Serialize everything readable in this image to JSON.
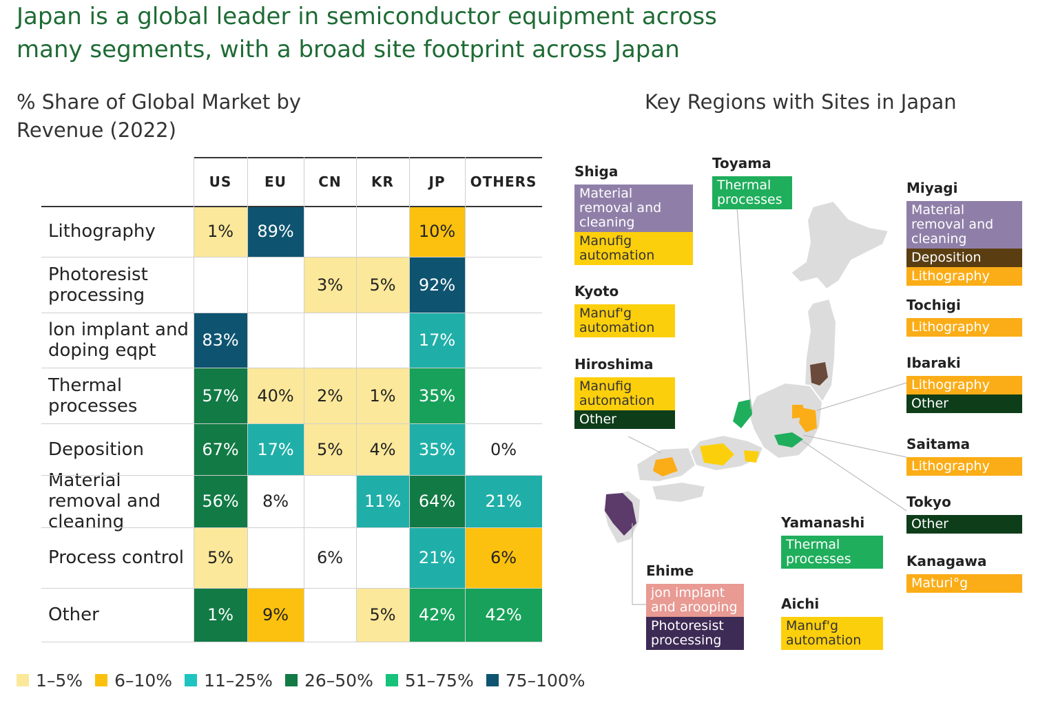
{
  "headline": "Japan is a global leader in semiconductor equipment across many segments, with a broad site footprint across Japan",
  "chart_data": {
    "type": "heatmap",
    "title": "% Share of Global Market by Revenue (2022)",
    "columns": [
      "US",
      "EU",
      "CN",
      "KR",
      "JP",
      "OTHERS"
    ],
    "rows": [
      {
        "label": "Lithography",
        "values": [
          {
            "text": "1%",
            "value": 1,
            "color": "#fbe89a"
          },
          {
            "text": "89%",
            "value": 89,
            "color": "#0e5470"
          },
          null,
          null,
          {
            "text": "10%",
            "value": 10,
            "color": "#fbc10e"
          },
          null
        ]
      },
      {
        "label": "Photoresist processing",
        "values": [
          null,
          null,
          {
            "text": "3%",
            "value": 3,
            "color": "#fbe89a"
          },
          {
            "text": "5%",
            "value": 5,
            "color": "#fbe89a"
          },
          {
            "text": "92%",
            "value": 92,
            "color": "#0e5470"
          },
          null
        ]
      },
      {
        "label": "lon implant and doping eqpt",
        "values": [
          {
            "text": "83%",
            "value": 83,
            "color": "#0e5470"
          },
          null,
          null,
          null,
          {
            "text": "17%",
            "value": 17,
            "color": "#1fafa8"
          },
          null
        ]
      },
      {
        "label": "Thermal processes",
        "values": [
          {
            "text": "57%",
            "value": 57,
            "color": "#127a45"
          },
          {
            "text": "40%",
            "value": 40,
            "color": "#fbe89a"
          },
          {
            "text": "2%",
            "value": 2,
            "color": "#fbe89a"
          },
          {
            "text": "1%",
            "value": 1,
            "color": "#fbe89a"
          },
          {
            "text": "35%",
            "value": 35,
            "color": "#17a15a"
          },
          null
        ]
      },
      {
        "label": "Deposition",
        "values": [
          {
            "text": "67%",
            "value": 67,
            "color": "#127a45"
          },
          {
            "text": "17%",
            "value": 17,
            "color": "#1fafa8"
          },
          {
            "text": "5%",
            "value": 5,
            "color": "#fbe89a"
          },
          {
            "text": "4%",
            "value": 4,
            "color": "#fbe89a"
          },
          {
            "text": "35%",
            "value": 35,
            "color": "#1fafa8"
          },
          {
            "text": "0%",
            "value": 0,
            "color": "#ffffff"
          }
        ]
      },
      {
        "label": "Material removal and cleaning",
        "values": [
          {
            "text": "56%",
            "value": 56,
            "color": "#127a45"
          },
          {
            "text": "8%",
            "value": 8,
            "color": "#ffffff"
          },
          null,
          {
            "text": "11%",
            "value": 11,
            "color": "#1fafa8"
          },
          {
            "text": "64%",
            "value": 64,
            "color": "#127a45"
          },
          {
            "text": "21%",
            "value": 21,
            "color": "#1fafa8"
          }
        ]
      },
      {
        "label": "Process control",
        "values": [
          {
            "text": "5%",
            "value": 5,
            "color": "#fbe89a"
          },
          null,
          {
            "text": "6%",
            "value": 6,
            "color": "#ffffff"
          },
          null,
          {
            "text": "21%",
            "value": 21,
            "color": "#1fafa8"
          },
          {
            "text": "6%",
            "value": 6,
            "color": "#fbc10e"
          }
        ]
      },
      {
        "label": "Other",
        "values": [
          {
            "text": "1%",
            "value": 1,
            "color": "#127a45"
          },
          {
            "text": "9%",
            "value": 9,
            "color": "#fbc10e"
          },
          null,
          {
            "text": "5%",
            "value": 5,
            "color": "#fbe89a"
          },
          {
            "text": "42%",
            "value": 42,
            "color": "#17a15a"
          },
          {
            "text": "42%",
            "value": 42,
            "color": "#17a15a"
          }
        ]
      }
    ],
    "legend": [
      {
        "label": "1–5%",
        "color": "#fbe89a"
      },
      {
        "label": "6–10%",
        "color": "#fbc10e"
      },
      {
        "label": "11–25%",
        "color": "#1fc4c0"
      },
      {
        "label": "26–50%",
        "color": "#127a45"
      },
      {
        "label": "51–75%",
        "color": "#17c27a"
      },
      {
        "label": "75–100%",
        "color": "#0e5470"
      }
    ],
    "grid": true
  },
  "map": {
    "title": "Key Regions with Sites in Japan",
    "regions": [
      {
        "name": "Shiga",
        "tags": [
          {
            "label": "Material removal and cleaning",
            "color": "#8f7fa8",
            "text_color": "#ffffff"
          },
          {
            "label": "Manufig automation",
            "color": "#fccf0c",
            "text_color": "#333333"
          }
        ]
      },
      {
        "name": "Toyama",
        "tags": [
          {
            "label": "Thermal processes",
            "color": "#1fae5c",
            "text_color": "#ffffff"
          }
        ]
      },
      {
        "name": "Miyagi",
        "tags": [
          {
            "label": "Material removal and cleaning",
            "color": "#8f7fa8",
            "text_color": "#ffffff"
          },
          {
            "label": "Deposition",
            "color": "#5a3e12",
            "text_color": "#ffffff"
          },
          {
            "label": "Lithography",
            "color": "#fbad17",
            "text_color": "#ffffff"
          }
        ]
      },
      {
        "name": "Kyoto",
        "tags": [
          {
            "label": "Manuf'g automation",
            "color": "#fccf0c",
            "text_color": "#333333"
          }
        ]
      },
      {
        "name": "Tochigi",
        "tags": [
          {
            "label": "Lithography",
            "color": "#fbad17",
            "text_color": "#ffffff"
          }
        ]
      },
      {
        "name": "Hiroshima",
        "tags": [
          {
            "label": "Manufig automation",
            "color": "#fccf0c",
            "text_color": "#333333"
          },
          {
            "label": "Other",
            "color": "#0e3d1a",
            "text_color": "#ffffff"
          }
        ]
      },
      {
        "name": "Ibaraki",
        "tags": [
          {
            "label": "Lithography",
            "color": "#fbad17",
            "text_color": "#ffffff"
          },
          {
            "label": "Other",
            "color": "#0e3d1a",
            "text_color": "#ffffff"
          }
        ]
      },
      {
        "name": "Saitama",
        "tags": [
          {
            "label": "Lithography",
            "color": "#fbad17",
            "text_color": "#ffffff"
          }
        ]
      },
      {
        "name": "Tokyo",
        "tags": [
          {
            "label": "Other",
            "color": "#0e3d1a",
            "text_color": "#ffffff"
          }
        ]
      },
      {
        "name": "Yamanashi",
        "tags": [
          {
            "label": "Thermal processes",
            "color": "#1fae5c",
            "text_color": "#ffffff"
          }
        ]
      },
      {
        "name": "Ehime",
        "tags": [
          {
            "label": "jon implant and arooping",
            "color": "#e89a93",
            "text_color": "#ffffff"
          },
          {
            "label": "Photoresist processing",
            "color": "#3d2a55",
            "text_color": "#ffffff"
          }
        ]
      },
      {
        "name": "Kanagawa",
        "tags": [
          {
            "label": "Maturi°g",
            "color": "#fbad17",
            "text_color": "#ffffff"
          }
        ]
      },
      {
        "name": "Aichi",
        "tags": [
          {
            "label": "Manuf'g automation",
            "color": "#fccf0c",
            "text_color": "#333333"
          }
        ]
      }
    ]
  }
}
